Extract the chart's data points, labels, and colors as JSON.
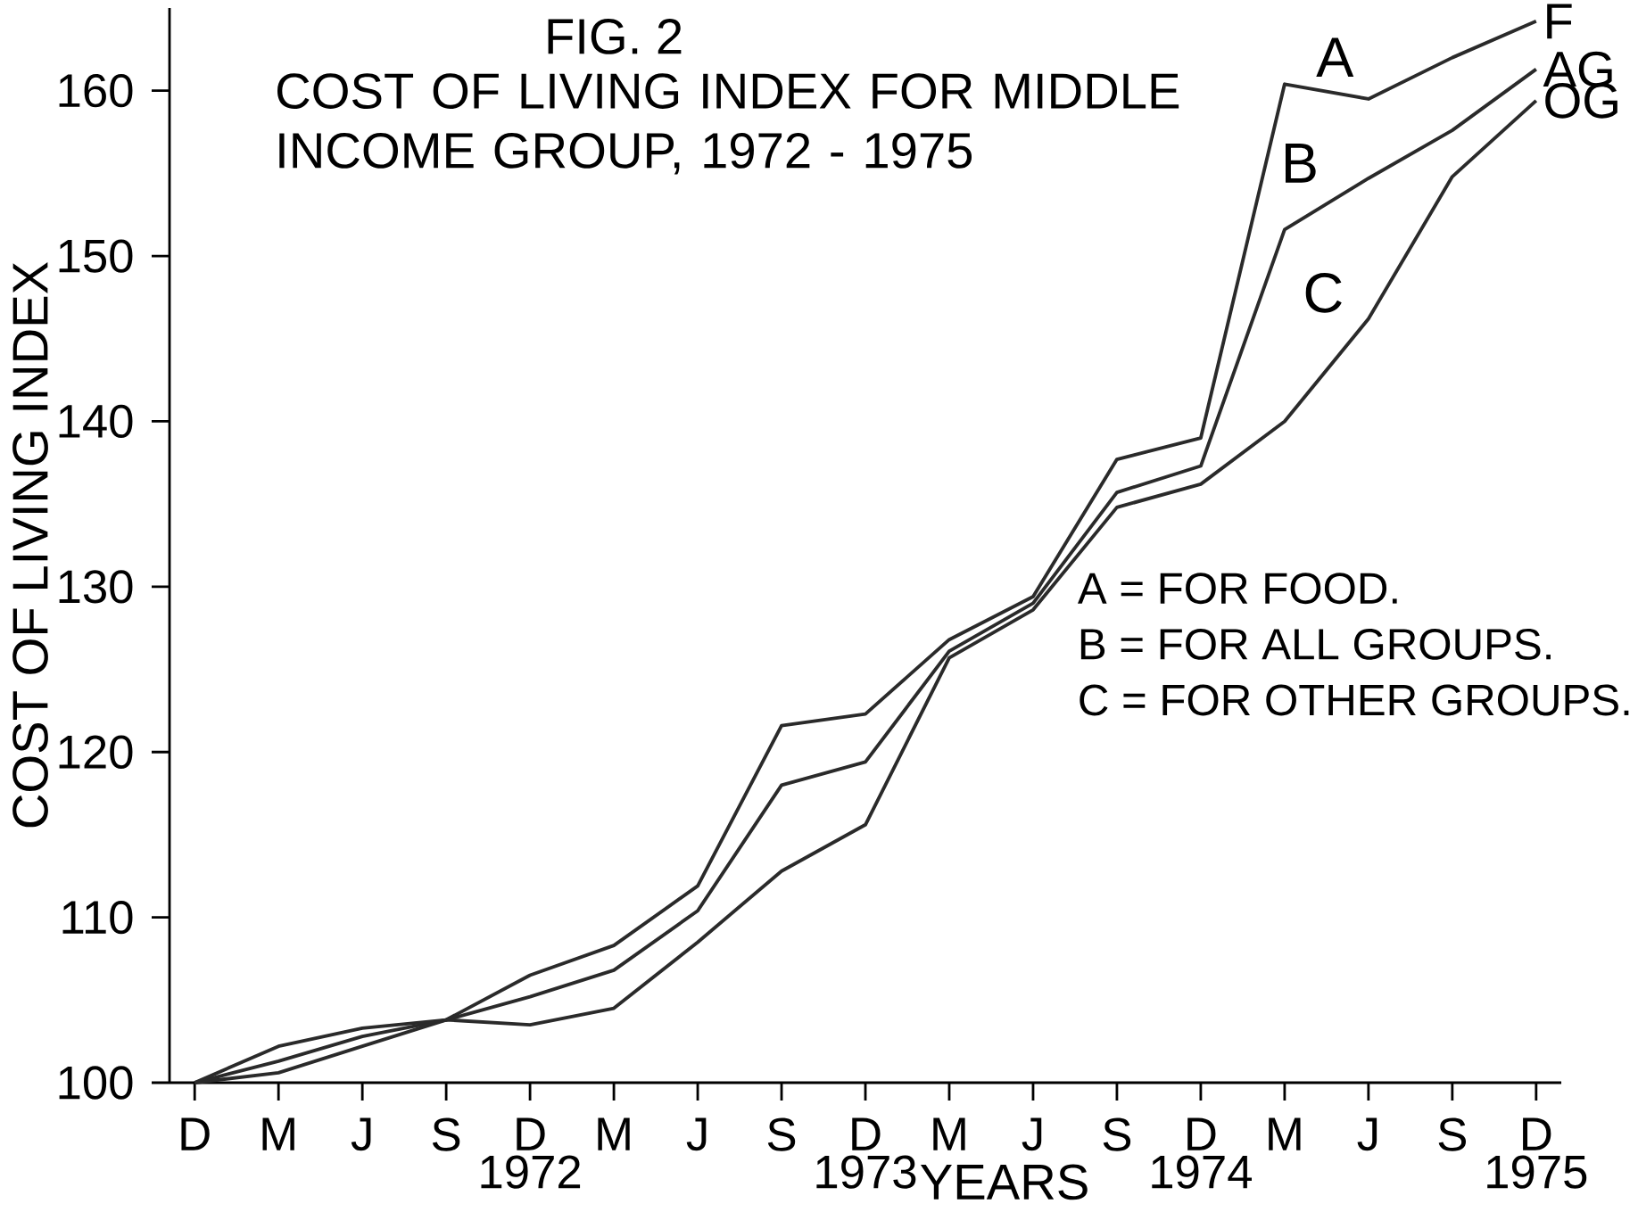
{
  "chart_data": {
    "type": "line",
    "title": "FIG. 2",
    "subtitle": "COST OF LIVING INDEX FOR MIDDLE INCOME GROUP, 1972 - 1975",
    "xlabel": "YEARS",
    "ylabel": "COST OF LIVING INDEX",
    "categories": [
      "D",
      "M",
      "J",
      "S",
      "D",
      "M",
      "J",
      "S",
      "D",
      "M",
      "J",
      "S",
      "D",
      "M",
      "J",
      "S",
      "D"
    ],
    "series": [
      {
        "name": "A",
        "color": "#2a2a2a",
        "values": [
          100,
          100.6,
          102.2,
          103.8,
          106.5,
          108.3,
          111.9,
          121.6,
          122.3,
          126.8,
          129.4,
          137.7,
          139.0,
          160.4,
          159.5,
          162.0,
          164.2
        ]
      },
      {
        "name": "B",
        "color": "#2a2a2a",
        "values": [
          100,
          101.3,
          102.8,
          103.8,
          105.2,
          106.8,
          110.4,
          118.0,
          119.4,
          126.1,
          129.0,
          135.7,
          137.3,
          151.6,
          154.7,
          157.6,
          161.3
        ]
      },
      {
        "name": "C",
        "color": "#2a2a2a",
        "values": [
          100,
          102.2,
          103.3,
          103.8,
          103.5,
          104.5,
          108.5,
          112.8,
          115.6,
          125.7,
          128.6,
          134.8,
          136.2,
          140.0,
          146.2,
          154.8,
          159.4
        ]
      }
    ],
    "ylim": [
      100,
      165
    ],
    "yticks": [
      100,
      110,
      120,
      130,
      140,
      150,
      160
    ],
    "annotations": [
      "1972",
      "1973",
      "1974",
      "1975",
      "F",
      "AG",
      "OG",
      "A = FOR FOOD.",
      "B = FOR ALL GROUPS.",
      "C = FOR OTHER GROUPS."
    ],
    "marker": "none",
    "line_style": "solid"
  }
}
